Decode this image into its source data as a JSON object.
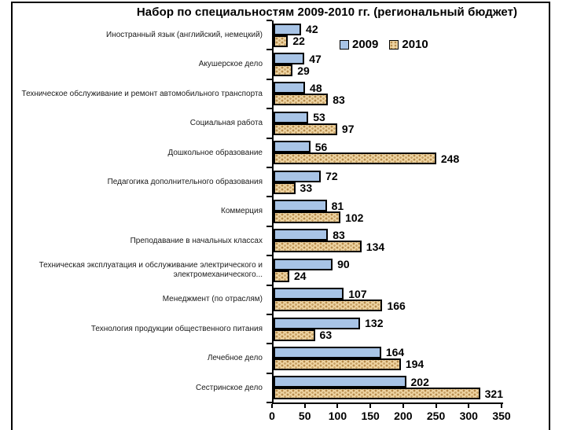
{
  "title": "Набор по специальностям 2009-2010 гг. (региональный бюджет)",
  "colors": {
    "series_2009": "#a8c4e6",
    "series_2010_base": "#eed4a2",
    "series_2010_dots": "#b78c4c",
    "outline": "#000000",
    "background": "#ffffff"
  },
  "legend": {
    "items": [
      {
        "label": "2009"
      },
      {
        "label": "2010"
      }
    ]
  },
  "chart_data": {
    "type": "bar",
    "orientation": "horizontal",
    "title": "Набор по специальностям 2009-2010 гг. (региональный бюджет)",
    "xlabel": "",
    "ylabel": "",
    "xlim": [
      0,
      350
    ],
    "x_ticks": [
      0,
      50,
      100,
      150,
      200,
      250,
      300,
      350
    ],
    "grid": false,
    "legend_position": "inside-top-right",
    "categories": [
      "Иностранный язык (английский, немецкий)",
      "Акушерское дело",
      "Техническое обслуживание и ремонт автомобильного транспорта",
      "Социальная работа",
      "Дошкольное образование",
      "Педагогика дополнительного образования",
      "Коммерция",
      "Преподавание в начальных классах",
      "Техническая эксплуатация и обслуживание электрического и электромеханического...",
      "Менеджмент (по отраслям)",
      "Технология продукции общественного питания",
      "Лечебное дело",
      "Сестринское дело"
    ],
    "series": [
      {
        "name": "2009",
        "values": [
          42,
          47,
          48,
          53,
          56,
          72,
          81,
          83,
          90,
          107,
          132,
          164,
          202
        ]
      },
      {
        "name": "2010",
        "values": [
          22,
          29,
          83,
          97,
          248,
          33,
          102,
          134,
          24,
          166,
          63,
          194,
          321
        ]
      }
    ]
  }
}
